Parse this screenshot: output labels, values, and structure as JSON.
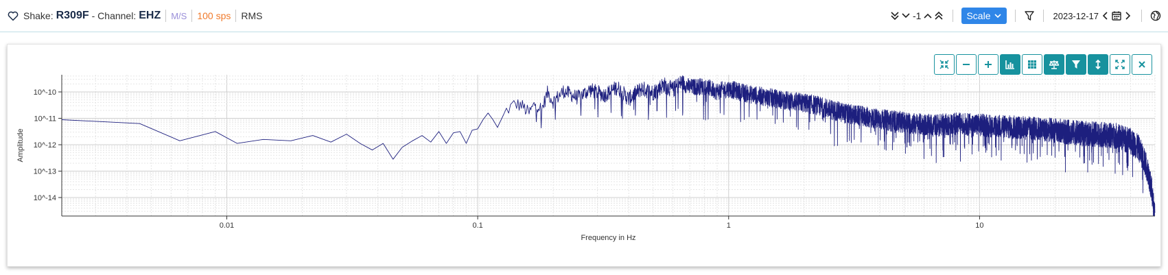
{
  "header": {
    "shake_label": "Shake:",
    "station": "R309F",
    "channel_label": "- Channel:",
    "channel": "EHZ",
    "units": "M/S",
    "sample_rate": "100 sps",
    "mode": "RMS",
    "offset": "-1",
    "scale_label": "Scale",
    "date": "2023-12-17"
  },
  "colors": {
    "accent": "#17929e",
    "scale_button": "#2f86e8",
    "units": "#9a8fd9",
    "sample_rate": "#f07a2b",
    "series": "#1d1f7e"
  },
  "toolbar": {
    "buttons": [
      {
        "name": "collapse-icon",
        "active": false
      },
      {
        "name": "zoom-out-icon",
        "active": false
      },
      {
        "name": "zoom-in-icon",
        "active": false
      },
      {
        "name": "spectrum-chart-icon",
        "active": true
      },
      {
        "name": "grid-icon",
        "active": false
      },
      {
        "name": "balance-icon",
        "active": true
      },
      {
        "name": "filter-icon",
        "active": true
      },
      {
        "name": "vertical-arrows-icon",
        "active": true
      },
      {
        "name": "expand-icon",
        "active": false
      },
      {
        "name": "close-icon",
        "active": false
      }
    ]
  },
  "chart_data": {
    "type": "line",
    "xlabel": "Frequency in Hz",
    "ylabel": "Amplitude",
    "x_scale": "log",
    "y_scale": "log",
    "xlim": [
      0.0022,
      50
    ],
    "ylim_exponent": [
      -14.7,
      -9.35
    ],
    "grid": true,
    "x_ticks": [
      {
        "value": 0.01,
        "label": "0.01"
      },
      {
        "value": 0.1,
        "label": "0.1"
      },
      {
        "value": 1,
        "label": "1"
      },
      {
        "value": 10,
        "label": "10"
      }
    ],
    "y_ticks": [
      {
        "exp": -10,
        "label": "10^-10"
      },
      {
        "exp": -11,
        "label": "10^-11"
      },
      {
        "exp": -12,
        "label": "10^-12"
      },
      {
        "exp": -13,
        "label": "10^-13"
      },
      {
        "exp": -14,
        "label": "10^-14"
      }
    ],
    "series": [
      {
        "points_log10_amplitude": [
          [
            0.0022,
            -11.05
          ],
          [
            0.0045,
            -11.2
          ],
          [
            0.0065,
            -11.85
          ],
          [
            0.009,
            -11.5
          ],
          [
            0.011,
            -11.95
          ],
          [
            0.014,
            -11.8
          ],
          [
            0.018,
            -11.85
          ],
          [
            0.022,
            -11.65
          ],
          [
            0.026,
            -11.9
          ],
          [
            0.03,
            -11.6
          ],
          [
            0.034,
            -11.95
          ],
          [
            0.038,
            -12.2
          ],
          [
            0.042,
            -11.95
          ],
          [
            0.046,
            -12.55
          ],
          [
            0.05,
            -12.1
          ],
          [
            0.055,
            -11.85
          ],
          [
            0.06,
            -11.65
          ],
          [
            0.065,
            -11.9
          ],
          [
            0.07,
            -11.5
          ],
          [
            0.075,
            -11.95
          ],
          [
            0.08,
            -11.55
          ],
          [
            0.085,
            -11.5
          ],
          [
            0.09,
            -11.95
          ],
          [
            0.095,
            -11.45
          ],
          [
            0.1,
            -11.4
          ],
          [
            0.105,
            -11.05
          ],
          [
            0.11,
            -10.8
          ],
          [
            0.115,
            -11.05
          ],
          [
            0.12,
            -11.35
          ],
          [
            0.13,
            -10.65
          ],
          [
            0.14,
            -10.4
          ],
          [
            0.15,
            -10.45
          ],
          [
            0.16,
            -10.75
          ],
          [
            0.17,
            -10.35
          ],
          [
            0.18,
            -10.6
          ],
          [
            0.19,
            -9.95
          ],
          [
            0.2,
            -10.3
          ],
          [
            0.22,
            -9.9
          ],
          [
            0.25,
            -10.15
          ],
          [
            0.28,
            -9.85
          ],
          [
            0.32,
            -10.05
          ],
          [
            0.36,
            -9.75
          ],
          [
            0.4,
            -10.2
          ],
          [
            0.45,
            -9.8
          ],
          [
            0.5,
            -9.95
          ],
          [
            0.55,
            -9.65
          ],
          [
            0.6,
            -9.85
          ],
          [
            0.65,
            -9.55
          ],
          [
            0.7,
            -9.75
          ],
          [
            0.8,
            -9.7
          ],
          [
            0.9,
            -9.9
          ],
          [
            1.0,
            -9.8
          ],
          [
            1.2,
            -10.0
          ],
          [
            1.4,
            -10.1
          ],
          [
            1.6,
            -10.2
          ],
          [
            1.9,
            -10.3
          ],
          [
            2.2,
            -10.4
          ],
          [
            2.6,
            -10.6
          ],
          [
            3.0,
            -10.75
          ],
          [
            3.5,
            -10.85
          ],
          [
            4.0,
            -10.95
          ],
          [
            5.0,
            -11.05
          ],
          [
            6.0,
            -11.15
          ],
          [
            7.0,
            -11.15
          ],
          [
            8.0,
            -11.1
          ],
          [
            10.0,
            -11.15
          ],
          [
            12.0,
            -11.2
          ],
          [
            15.0,
            -11.25
          ],
          [
            20.0,
            -11.35
          ],
          [
            25.0,
            -11.45
          ],
          [
            30.0,
            -11.5
          ],
          [
            35.0,
            -11.55
          ],
          [
            40.0,
            -11.75
          ],
          [
            43.0,
            -12.0
          ],
          [
            45.0,
            -12.4
          ],
          [
            47.0,
            -12.9
          ],
          [
            48.5,
            -13.6
          ],
          [
            49.5,
            -14.3
          ],
          [
            50.0,
            -14.6
          ]
        ]
      }
    ]
  }
}
